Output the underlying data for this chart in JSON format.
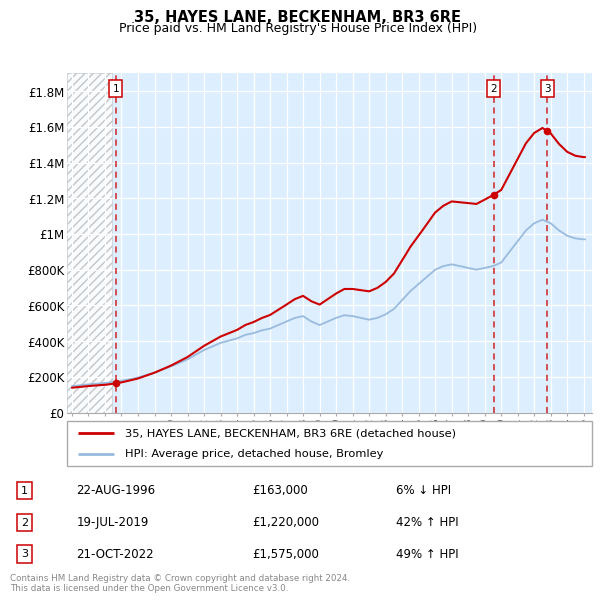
{
  "title": "35, HAYES LANE, BECKENHAM, BR3 6RE",
  "subtitle": "Price paid vs. HM Land Registry's House Price Index (HPI)",
  "legend_line1": "35, HAYES LANE, BECKENHAM, BR3 6RE (detached house)",
  "legend_line2": "HPI: Average price, detached house, Bromley",
  "sale_color": "#cc0000",
  "hpi_color": "#99bbdd",
  "background_plot": "#ddeeff",
  "footer": "Contains HM Land Registry data © Crown copyright and database right 2024.\nThis data is licensed under the Open Government Licence v3.0.",
  "ylim": [
    0,
    1900000
  ],
  "yticks": [
    0,
    200000,
    400000,
    600000,
    800000,
    1000000,
    1200000,
    1400000,
    1600000,
    1800000
  ],
  "ytick_labels": [
    "£0",
    "£200K",
    "£400K",
    "£600K",
    "£800K",
    "£1M",
    "£1.2M",
    "£1.4M",
    "£1.6M",
    "£1.8M"
  ],
  "sales": [
    {
      "date": 1996.65,
      "price": 163000,
      "label": "1"
    },
    {
      "date": 2019.54,
      "price": 1220000,
      "label": "2"
    },
    {
      "date": 2022.8,
      "price": 1575000,
      "label": "3"
    }
  ],
  "sale_annotations": [
    {
      "label": "1",
      "date": "22-AUG-1996",
      "price": "£163,000",
      "change": "6% ↓ HPI"
    },
    {
      "label": "2",
      "date": "19-JUL-2019",
      "price": "£1,220,000",
      "change": "42% ↑ HPI"
    },
    {
      "label": "3",
      "date": "21-OCT-2022",
      "price": "£1,575,000",
      "change": "49% ↑ HPI"
    }
  ],
  "xmin": 1993.7,
  "xmax": 2025.5,
  "xticks": [
    1994,
    1995,
    1996,
    1997,
    1998,
    1999,
    2000,
    2001,
    2002,
    2003,
    2004,
    2005,
    2006,
    2007,
    2008,
    2009,
    2010,
    2011,
    2012,
    2013,
    2014,
    2015,
    2016,
    2017,
    2018,
    2019,
    2020,
    2021,
    2022,
    2023,
    2024,
    2025
  ],
  "hatch_end": 1996.4
}
